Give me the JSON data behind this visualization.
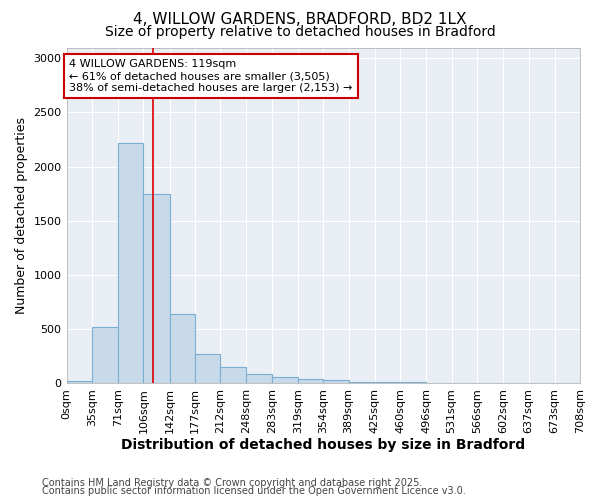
{
  "title1": "4, WILLOW GARDENS, BRADFORD, BD2 1LX",
  "title2": "Size of property relative to detached houses in Bradford",
  "xlabel": "Distribution of detached houses by size in Bradford",
  "ylabel": "Number of detached properties",
  "bar_color": "#c8daea",
  "bar_edge_color": "#7aafd4",
  "bins": [
    0,
    35,
    71,
    106,
    142,
    177,
    212,
    248,
    283,
    319,
    354,
    389,
    425,
    460,
    496,
    531,
    566,
    602,
    637,
    673,
    708
  ],
  "values": [
    18,
    520,
    2220,
    1750,
    640,
    265,
    150,
    80,
    55,
    40,
    30,
    5,
    5,
    5,
    0,
    0,
    4,
    0,
    3,
    0
  ],
  "tick_labels": [
    "0sqm",
    "35sqm",
    "71sqm",
    "106sqm",
    "142sqm",
    "177sqm",
    "212sqm",
    "248sqm",
    "283sqm",
    "319sqm",
    "354sqm",
    "389sqm",
    "425sqm",
    "460sqm",
    "496sqm",
    "531sqm",
    "566sqm",
    "602sqm",
    "637sqm",
    "673sqm",
    "708sqm"
  ],
  "ylim": [
    0,
    3100
  ],
  "yticks": [
    0,
    500,
    1000,
    1500,
    2000,
    2500,
    3000
  ],
  "property_size": 119,
  "red_line_color": "#dd0000",
  "annotation_text": "4 WILLOW GARDENS: 119sqm\n← 61% of detached houses are smaller (3,505)\n38% of semi-detached houses are larger (2,153) →",
  "annotation_box_color": "#ffffff",
  "annotation_box_edge": "#cc0000",
  "footer1": "Contains HM Land Registry data © Crown copyright and database right 2025.",
  "footer2": "Contains public sector information licensed under the Open Government Licence v3.0.",
  "bg_color": "#ffffff",
  "plot_bg_color": "#e8eef4",
  "grid_color": "#ffffff",
  "title1_fontsize": 11,
  "title2_fontsize": 10,
  "ylabel_fontsize": 9,
  "xlabel_fontsize": 10,
  "tick_fontsize": 8,
  "footer_fontsize": 7
}
